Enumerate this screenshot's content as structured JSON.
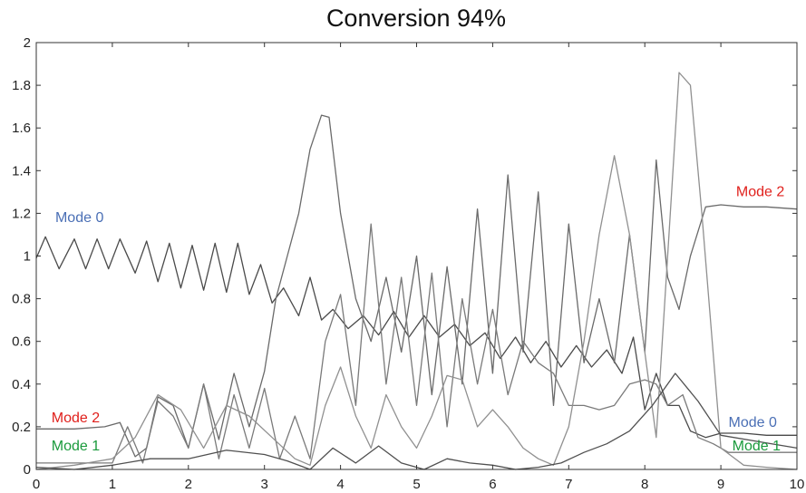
{
  "chart_data": {
    "type": "line",
    "title": "Conversion 94%",
    "xlabel": "",
    "ylabel": "",
    "xlim": [
      0,
      10
    ],
    "ylim": [
      0,
      2
    ],
    "xticks": [
      0,
      1,
      2,
      3,
      4,
      5,
      6,
      7,
      8,
      9,
      10
    ],
    "yticks": [
      0,
      0.2,
      0.4,
      0.6,
      0.8,
      1,
      1.2,
      1.4,
      1.6,
      1.8,
      2
    ],
    "ytick_labels": [
      "0",
      "0.2",
      "0.4",
      "0.6",
      "0.8",
      "1",
      "1.2",
      "1.4",
      "1.6",
      "1.8",
      "2"
    ],
    "grid": false,
    "line_color": "#555555",
    "annotations": [
      {
        "text": "Mode 0",
        "x": 0.25,
        "y": 1.16,
        "color": "#4a6fb5"
      },
      {
        "text": "Mode 2",
        "x": 0.2,
        "y": 0.22,
        "color": "#e0201c"
      },
      {
        "text": "Mode 1",
        "x": 0.2,
        "y": 0.09,
        "color": "#1a9a3c"
      },
      {
        "text": "Mode 2",
        "x": 9.2,
        "y": 1.28,
        "color": "#e0201c"
      },
      {
        "text": "Mode 0",
        "x": 9.1,
        "y": 0.2,
        "color": "#4a6fb5"
      },
      {
        "text": "Mode 1",
        "x": 9.15,
        "y": 0.09,
        "color": "#1a9a3c"
      }
    ],
    "series": [
      {
        "color": "#4a4a4a",
        "x": [
          0,
          0.12,
          0.3,
          0.5,
          0.65,
          0.8,
          0.95,
          1.1,
          1.3,
          1.45,
          1.6,
          1.75,
          1.9,
          2.05,
          2.2,
          2.35,
          2.5,
          2.65,
          2.8,
          2.95,
          3.1,
          3.25,
          3.45,
          3.6,
          3.75,
          3.9,
          4.1,
          4.3,
          4.5,
          4.7,
          4.9,
          5.1,
          5.3,
          5.5,
          5.7,
          5.9,
          6.1,
          6.3,
          6.5,
          6.7,
          6.9,
          7.1,
          7.3,
          7.5,
          7.7,
          7.85,
          8,
          8.15,
          8.3,
          8.45,
          8.6,
          8.8,
          9,
          9.3,
          9.6,
          10
        ],
        "y": [
          0.99,
          1.09,
          0.94,
          1.08,
          0.94,
          1.08,
          0.94,
          1.08,
          0.92,
          1.07,
          0.88,
          1.06,
          0.85,
          1.05,
          0.84,
          1.06,
          0.83,
          1.06,
          0.82,
          0.96,
          0.78,
          0.85,
          0.72,
          0.9,
          0.7,
          0.75,
          0.66,
          0.72,
          0.63,
          0.74,
          0.62,
          0.72,
          0.62,
          0.68,
          0.58,
          0.64,
          0.52,
          0.62,
          0.5,
          0.6,
          0.48,
          0.58,
          0.48,
          0.56,
          0.45,
          0.62,
          0.28,
          0.45,
          0.3,
          0.3,
          0.18,
          0.15,
          0.17,
          0.17,
          0.16,
          0.16
        ]
      },
      {
        "color": "#6a6a6a",
        "x": [
          0,
          0.5,
          0.9,
          1.1,
          1.3,
          1.45,
          1.6,
          1.8,
          2,
          2.2,
          2.4,
          2.6,
          2.8,
          3,
          3.15,
          3.3,
          3.45,
          3.6,
          3.75,
          3.85,
          4,
          4.2,
          4.4,
          4.6,
          4.8,
          5,
          5.2,
          5.4,
          5.6,
          5.8,
          6,
          6.2,
          6.4,
          6.6,
          6.8,
          7,
          7.2,
          7.4,
          7.6,
          7.8,
          8,
          8.15,
          8.3,
          8.45,
          8.6,
          8.8,
          9,
          9.3,
          9.6,
          10
        ],
        "y": [
          0.19,
          0.19,
          0.2,
          0.22,
          0.06,
          0.1,
          0.34,
          0.3,
          0.1,
          0.4,
          0.14,
          0.45,
          0.2,
          0.46,
          0.8,
          1.0,
          1.2,
          1.5,
          1.66,
          1.65,
          1.2,
          0.8,
          0.6,
          0.9,
          0.55,
          1.0,
          0.35,
          0.95,
          0.4,
          1.22,
          0.45,
          1.38,
          0.55,
          1.3,
          0.3,
          1.15,
          0.5,
          0.8,
          0.5,
          1.1,
          0.55,
          1.45,
          0.9,
          0.75,
          1.0,
          1.23,
          1.24,
          1.23,
          1.23,
          1.22
        ]
      },
      {
        "color": "#7a7a7a",
        "x": [
          0,
          0.6,
          1,
          1.2,
          1.4,
          1.6,
          1.8,
          2,
          2.2,
          2.4,
          2.6,
          2.8,
          3,
          3.2,
          3.4,
          3.6,
          3.8,
          4,
          4.2,
          4.4,
          4.6,
          4.8,
          5,
          5.2,
          5.4,
          5.6,
          5.8,
          6,
          6.2,
          6.4,
          6.6,
          6.8,
          7,
          7.2,
          7.4,
          7.6,
          7.8,
          8,
          8.15,
          8.3,
          8.5,
          8.7,
          8.9,
          9.1,
          9.4,
          9.7,
          10
        ],
        "y": [
          0.03,
          0.03,
          0.03,
          0.2,
          0.03,
          0.32,
          0.25,
          0.1,
          0.4,
          0.05,
          0.35,
          0.1,
          0.38,
          0.05,
          0.25,
          0.05,
          0.6,
          0.82,
          0.3,
          1.15,
          0.4,
          0.9,
          0.3,
          0.92,
          0.2,
          0.8,
          0.4,
          0.75,
          0.35,
          0.6,
          0.5,
          0.45,
          0.3,
          0.3,
          0.28,
          0.3,
          0.4,
          0.42,
          0.4,
          0.3,
          0.35,
          0.15,
          0.12,
          0.08,
          0.08,
          0.08,
          0.08
        ]
      },
      {
        "color": "#909090",
        "x": [
          0,
          0.5,
          1,
          1.3,
          1.6,
          1.9,
          2.2,
          2.5,
          2.8,
          3.1,
          3.4,
          3.6,
          3.8,
          4,
          4.2,
          4.4,
          4.6,
          4.8,
          5,
          5.2,
          5.4,
          5.6,
          5.8,
          6,
          6.2,
          6.4,
          6.6,
          6.8,
          7,
          7.2,
          7.4,
          7.6,
          7.8,
          8,
          8.15,
          8.3,
          8.45,
          8.6,
          8.75,
          9,
          9.3,
          9.6,
          10
        ],
        "y": [
          0,
          0.02,
          0.05,
          0.15,
          0.35,
          0.28,
          0.1,
          0.3,
          0.25,
          0.15,
          0.05,
          0.02,
          0.3,
          0.48,
          0.25,
          0.1,
          0.35,
          0.2,
          0.1,
          0.25,
          0.44,
          0.42,
          0.2,
          0.28,
          0.2,
          0.1,
          0.05,
          0.02,
          0.2,
          0.6,
          1.1,
          1.47,
          1.1,
          0.55,
          0.15,
          1.0,
          1.86,
          1.8,
          1.2,
          0.1,
          0.02,
          0.01,
          0
        ]
      },
      {
        "color": "#505050",
        "x": [
          0,
          0.5,
          1,
          1.5,
          2,
          2.5,
          3,
          3.3,
          3.6,
          3.9,
          4.2,
          4.5,
          4.8,
          5.1,
          5.4,
          5.7,
          6,
          6.3,
          6.6,
          6.9,
          7.2,
          7.5,
          7.8,
          8.1,
          8.4,
          8.7,
          9,
          9.5,
          10
        ],
        "y": [
          0.01,
          0,
          0.02,
          0.05,
          0.05,
          0.09,
          0.07,
          0.04,
          0,
          0.1,
          0.03,
          0.11,
          0.03,
          0.0,
          0.05,
          0.03,
          0.02,
          0.0,
          0.01,
          0.03,
          0.08,
          0.12,
          0.18,
          0.3,
          0.45,
          0.32,
          0.16,
          0.13,
          0.1
        ]
      }
    ]
  }
}
